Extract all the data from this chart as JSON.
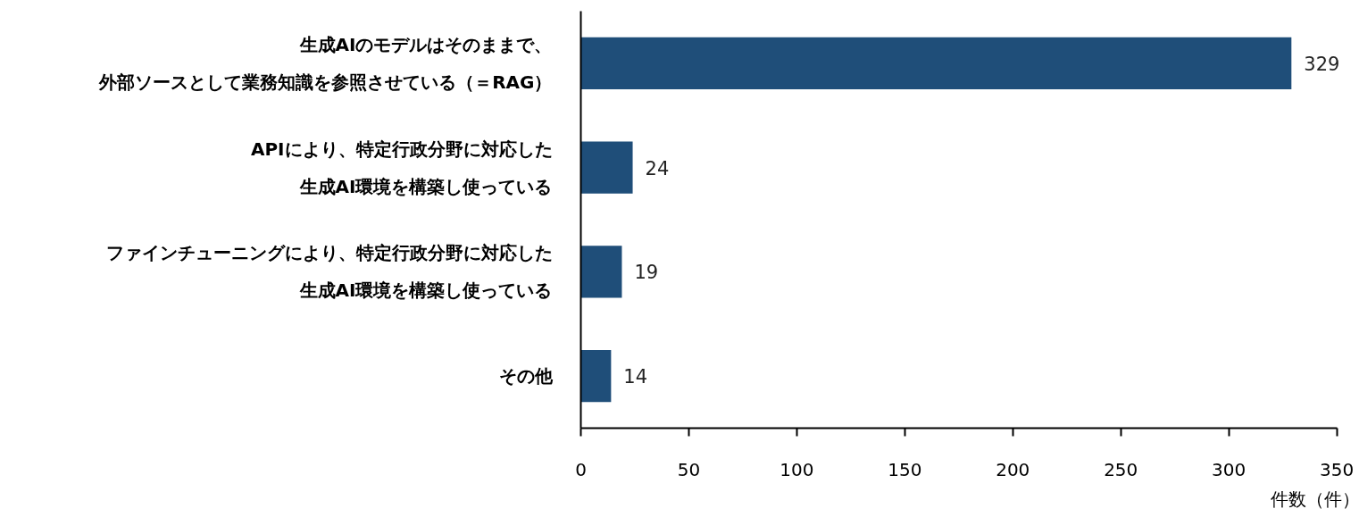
{
  "chart_data": {
    "type": "bar",
    "orientation": "horizontal",
    "categories": [
      "生成AIのモデルはそのままで、外部ソースとして業務知識を参照させている（＝RAG）",
      "APIにより、特定行政分野に対応した生成AI環境を構築し使っている",
      "ファインチューニングにより、特定行政分野に対応した生成AI環境を構築し使っている",
      "その他"
    ],
    "values": [
      329,
      24,
      19,
      14
    ],
    "color": "#1f4e79",
    "data_labels": true,
    "xlabel": "件数（件）",
    "xlim": [
      0,
      350
    ],
    "xticks": [
      0,
      50,
      100,
      150,
      200,
      250,
      300,
      350
    ]
  }
}
